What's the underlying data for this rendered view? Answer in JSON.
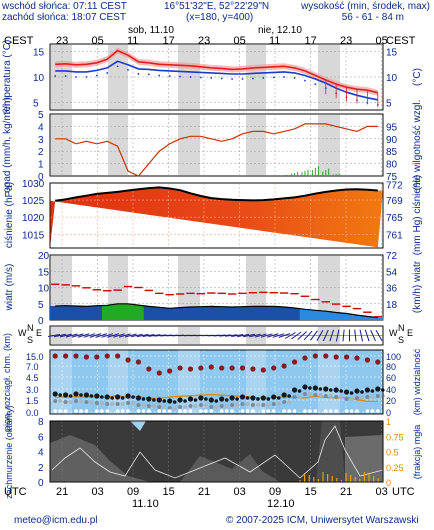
{
  "header": {
    "sunrise": "wschód słońca: 07:11 CEST",
    "sunset": "zachód słońca: 18:07 CEST",
    "coords": "16°51'32\"E, 52°22'29\"N",
    "grid": "(x=180, y=400)",
    "height_label": "wysokość (min, środek, max)",
    "height_values": "56 - 61 - 84 m"
  },
  "timeline": {
    "tz_top": "CEST",
    "tz_bottom": "UTC",
    "top_hours": [
      "23",
      "05",
      "11",
      "17",
      "23",
      "05",
      "11",
      "17",
      "23",
      "05"
    ],
    "bottom_hours": [
      "21",
      "03",
      "09",
      "15",
      "21",
      "03",
      "09",
      "15",
      "21",
      "03"
    ],
    "day1": "sob, 11.10",
    "day2": "nie, 12.10",
    "day1_bottom": "11.10",
    "day2_bottom": "12.10"
  },
  "footer": {
    "email": "meteo@icm.edu.pl",
    "copyright": "© 2007-2025 ICM, Uniwersytet Warszawski"
  },
  "chart_data": [
    {
      "type": "line",
      "name": "temperature",
      "ylabel_left": "temperatura (°C)",
      "ylabel_right": "(°C)",
      "yticks": [
        5,
        10,
        15
      ],
      "ylim": [
        3.5,
        16.5
      ],
      "series": [
        {
          "name": "temperature",
          "color": "#e02020",
          "values": [
            12.5,
            12.6,
            12.4,
            12.5,
            12.8,
            13.5,
            15.2,
            14.3,
            13.0,
            12.8,
            12.5,
            12.4,
            12.3,
            12.2,
            12.0,
            11.8,
            11.7,
            11.5,
            11.6,
            11.8,
            11.9,
            12.0,
            12.1,
            11.8,
            11.2,
            10.3,
            9.4,
            8.6,
            8.0,
            7.6,
            7.4,
            6.9
          ]
        },
        {
          "name": "dew point",
          "color": "#1a3acc",
          "values": [
            11.2,
            11.2,
            11.0,
            11.0,
            11.3,
            11.8,
            13.1,
            12.4,
            11.6,
            11.5,
            11.3,
            11.2,
            11.1,
            11.0,
            10.9,
            10.8,
            10.7,
            10.6,
            10.6,
            10.7,
            10.8,
            10.9,
            11.0,
            10.8,
            10.3,
            9.6,
            8.8,
            7.8,
            7.0,
            6.4,
            5.9,
            5.5
          ]
        }
      ]
    },
    {
      "type": "line",
      "name": "precipitation-humidity",
      "ylabel_left": "opad (mm/h, kg/m²/h)",
      "ylabel_right": "(%) wilgotność wzgl.",
      "yticks_left": [
        0,
        1,
        2,
        3,
        4,
        5
      ],
      "yticks_right": [
        75,
        80,
        85,
        90,
        95
      ],
      "series": [
        {
          "name": "humidity",
          "color": "#cc3300",
          "axis": "right",
          "values": [
            90,
            90,
            88,
            89,
            88,
            89,
            87,
            77,
            75,
            80,
            85,
            88,
            90,
            91,
            91,
            90,
            89,
            90,
            92,
            93,
            93,
            92,
            93,
            94,
            96,
            96,
            96,
            95,
            94,
            93,
            95,
            95
          ]
        },
        {
          "name": "precipitation",
          "color": "#22aa22",
          "axis": "left",
          "values": [
            0,
            0,
            0,
            0,
            0,
            0,
            0,
            0,
            0,
            0,
            0,
            0,
            0,
            0,
            0,
            0,
            0,
            0,
            0,
            0,
            0,
            0,
            0.1,
            0.3,
            0.5,
            0.8,
            0.6,
            0.2,
            0,
            0,
            0,
            0
          ]
        }
      ]
    },
    {
      "type": "area",
      "name": "pressure",
      "ylabel_left": "ciśnienie (hPa)",
      "ylabel_right": "(mm Hg) ciśnienie",
      "yticks_left": [
        1015,
        1020,
        1025,
        1030
      ],
      "yticks_right": [
        761,
        765,
        769,
        772
      ],
      "ylim": [
        1011,
        1030
      ],
      "series": [
        {
          "name": "pressure",
          "color": "#000000",
          "values": [
            1024.8,
            1025.2,
            1025.8,
            1026.3,
            1026.8,
            1027.1,
            1027.4,
            1027.8,
            1028.2,
            1028.5,
            1028.7,
            1028.4,
            1027.9,
            1027.0,
            1026.2,
            1025.6,
            1025.3,
            1025.1,
            1025.0,
            1024.9,
            1025.0,
            1025.2,
            1025.5,
            1025.8,
            1026.3,
            1026.9,
            1027.4,
            1027.8,
            1028.1,
            1028.2,
            1028.0,
            1027.8
          ]
        }
      ]
    },
    {
      "type": "line",
      "name": "wind",
      "ylabel_left": "wiatr (m/s)",
      "ylabel_right": "(km/h) wiatr",
      "yticks_left": [
        0,
        5,
        10,
        15,
        20
      ],
      "yticks_right": [
        18,
        36,
        54,
        72
      ],
      "series": [
        {
          "name": "gusts",
          "color": "#cc0000",
          "values": [
            11.0,
            10.8,
            10.5,
            9.9,
            9.3,
            9.0,
            9.2,
            10.3,
            10.0,
            9.1,
            8.2,
            7.8,
            8.0,
            8.2,
            8.1,
            8.3,
            8.2,
            8.0,
            8.2,
            8.4,
            8.5,
            8.4,
            8.3,
            8.1,
            7.3,
            6.3,
            5.6,
            4.9,
            4.2,
            3.5,
            2.4,
            1.0
          ]
        },
        {
          "name": "speed",
          "color": "#000000",
          "values": [
            4.3,
            4.4,
            4.3,
            4.2,
            4.4,
            4.5,
            5.0,
            5.0,
            4.6,
            4.2,
            3.9,
            3.6,
            3.8,
            4.0,
            4.1,
            4.2,
            4.1,
            4.0,
            4.1,
            4.2,
            4.2,
            4.2,
            4.0,
            3.7,
            3.3,
            3.0,
            2.7,
            2.3,
            2.0,
            1.5,
            1.1,
            0.7
          ]
        }
      ]
    },
    {
      "type": "scatter",
      "name": "wind-direction",
      "labels": [
        "W",
        "S",
        "N",
        "E"
      ]
    },
    {
      "type": "line",
      "name": "cloud-base-visibility",
      "ylabel_left": "pion. rozciągł. chm. (km)",
      "ylabel_right": "(km) widzialność",
      "yticks_left": [
        0.0,
        1.5,
        3.0,
        4.5,
        6.0,
        7.0,
        15.0
      ],
      "yticks_right": [
        0,
        20,
        40,
        60,
        80,
        100
      ],
      "series": [
        {
          "name": "visibility",
          "color": "#e08a00",
          "values": [
            26,
            27,
            27,
            27,
            27,
            26,
            30,
            25,
            27,
            25,
            24,
            27,
            28,
            29,
            30,
            31,
            30,
            29,
            28,
            26,
            25,
            26,
            27,
            26,
            25,
            28,
            26,
            25,
            26,
            22,
            19,
            19
          ]
        }
      ]
    },
    {
      "type": "area",
      "name": "cloudiness-fog",
      "ylabel_left": "zachmurzenie (oktanty)",
      "ylabel_right": "(frakcja) mgła",
      "yticks_left": [
        0,
        2,
        4,
        6,
        8
      ],
      "yticks_right": [
        0,
        0.25,
        0.5,
        0.75,
        1
      ]
    }
  ]
}
